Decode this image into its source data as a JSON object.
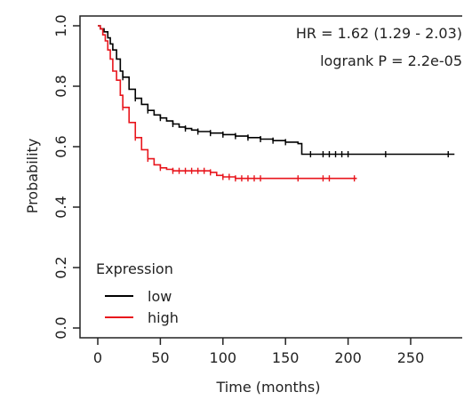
{
  "chart_data": {
    "type": "line",
    "title": "",
    "xlabel": "Time (months)",
    "ylabel": "Probability",
    "xlim": [
      0,
      285
    ],
    "ylim": [
      0,
      1.0
    ],
    "x_ticks": [
      0,
      50,
      100,
      150,
      200,
      250
    ],
    "y_ticks": [
      0.0,
      0.2,
      0.4,
      0.6,
      0.8,
      1.0
    ],
    "x_tick_labels": [
      "0",
      "50",
      "100",
      "150",
      "200",
      "250"
    ],
    "y_tick_labels": [
      "0.0",
      "0.2",
      "0.4",
      "0.6",
      "0.8",
      "1.0"
    ],
    "grid": false,
    "annotations": [
      "HR = 1.62 (1.29 - 2.03)",
      "logrank P = 2.2e-05"
    ],
    "legend": {
      "title": "Expression",
      "position": "bottom-left",
      "entries": [
        "low",
        "high"
      ]
    },
    "series": [
      {
        "name": "low",
        "color": "#000000",
        "x": [
          0,
          2,
          5,
          8,
          10,
          12,
          15,
          18,
          20,
          25,
          30,
          35,
          40,
          45,
          50,
          55,
          60,
          65,
          70,
          75,
          80,
          90,
          100,
          110,
          120,
          130,
          140,
          150,
          160,
          163,
          180,
          200,
          230,
          285
        ],
        "values": [
          1.0,
          0.99,
          0.98,
          0.96,
          0.94,
          0.92,
          0.89,
          0.85,
          0.83,
          0.79,
          0.76,
          0.74,
          0.72,
          0.705,
          0.695,
          0.685,
          0.675,
          0.665,
          0.66,
          0.655,
          0.65,
          0.645,
          0.64,
          0.635,
          0.63,
          0.625,
          0.62,
          0.615,
          0.61,
          0.575,
          0.575,
          0.575,
          0.575,
          0.575
        ],
        "censor_x": [
          20,
          30,
          40,
          50,
          60,
          70,
          80,
          90,
          100,
          110,
          120,
          130,
          140,
          150,
          170,
          180,
          185,
          190,
          195,
          200,
          230,
          280
        ]
      },
      {
        "name": "high",
        "color": "#e8151c",
        "x": [
          0,
          2,
          4,
          6,
          8,
          10,
          12,
          15,
          18,
          20,
          25,
          30,
          35,
          40,
          45,
          50,
          55,
          60,
          70,
          80,
          90,
          95,
          100,
          110,
          120,
          130,
          150,
          170,
          185,
          200,
          207
        ],
        "values": [
          1.0,
          0.99,
          0.97,
          0.95,
          0.92,
          0.89,
          0.85,
          0.82,
          0.77,
          0.73,
          0.68,
          0.63,
          0.59,
          0.56,
          0.54,
          0.53,
          0.525,
          0.52,
          0.52,
          0.52,
          0.515,
          0.505,
          0.5,
          0.495,
          0.495,
          0.495,
          0.495,
          0.495,
          0.495,
          0.495,
          0.495
        ],
        "censor_x": [
          20,
          30,
          40,
          50,
          60,
          65,
          70,
          75,
          80,
          85,
          90,
          100,
          105,
          110,
          115,
          120,
          125,
          130,
          160,
          180,
          185,
          205
        ]
      }
    ]
  }
}
